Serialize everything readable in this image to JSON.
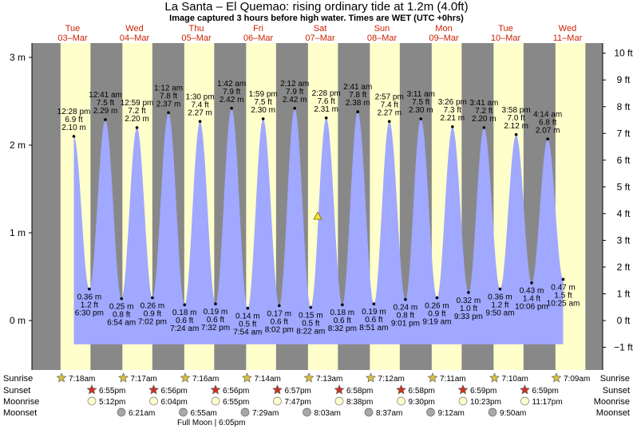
{
  "title": "La Santa – El Quemao: rising  ordinary tide at 1.2m (4.0ft)",
  "subtitle1": "Image captured 3 hours before high water. Times are WET (UTC +0hrs)",
  "subtitle2": "",
  "colors": {
    "night": "#888888",
    "day": "#ffffcc",
    "tide": "#a0a8ff",
    "date_red": "#cc2200",
    "sun_star": "#d8c040",
    "sunset_star": "#cc3322",
    "moonrise": "#ffffcc",
    "moonset": "#a8a8a8"
  },
  "days": [
    {
      "dow": "Tue",
      "date": "03–Mar"
    },
    {
      "dow": "Wed",
      "date": "04–Mar"
    },
    {
      "dow": "Thu",
      "date": "05–Mar"
    },
    {
      "dow": "Fri",
      "date": "06–Mar"
    },
    {
      "dow": "Sat",
      "date": "07–Mar"
    },
    {
      "dow": "Sun",
      "date": "08–Mar"
    },
    {
      "dow": "Mon",
      "date": "09–Mar"
    },
    {
      "dow": "Tue",
      "date": "10–Mar"
    },
    {
      "dow": "Wed",
      "date": "11–Mar"
    }
  ],
  "row_labels": {
    "sunrise": "Sunrise",
    "sunset": "Sunset",
    "moonrise": "Moonrise",
    "moonset": "Moonset"
  },
  "sunrise": [
    "7:18am",
    "7:17am",
    "7:16am",
    "7:14am",
    "7:13am",
    "7:12am",
    "7:11am",
    "7:10am",
    "7:09am"
  ],
  "sunset": [
    "6:55pm",
    "6:56pm",
    "6:56pm",
    "6:57pm",
    "6:58pm",
    "6:58pm",
    "6:59pm",
    "6:59pm"
  ],
  "moonrise": [
    "5:12pm",
    "6:04pm",
    "6:55pm",
    "7:47pm",
    "8:38pm",
    "9:30pm",
    "10:23pm",
    "11:17pm"
  ],
  "moonset": [
    "6:21am",
    "6:55am",
    "7:29am",
    "8:03am",
    "8:37am",
    "9:12am",
    "9:50am"
  ],
  "full_moon": "Full Moon | 6:05pm",
  "chart_data": {
    "type": "area",
    "title": "La Santa – El Quemao: rising  ordinary tide at 1.2m (4.0ft)",
    "ylabel_left": "m",
    "ylabel_right": "ft",
    "ylim_m": [
      -0.3,
      3.1
    ],
    "y_ticks_m": [
      "0 m",
      "1 m",
      "2 m",
      "3 m"
    ],
    "y_ticks_ft": [
      "−1 ft",
      "0 ft",
      "1 ft",
      "2 ft",
      "3 ft",
      "4 ft",
      "5 ft",
      "6 ft",
      "7 ft",
      "8 ft",
      "9 ft",
      "10 ft"
    ],
    "current": {
      "height_m": 1.2,
      "height_ft": 4.0,
      "marker": "triangle"
    },
    "extremes": [
      {
        "kind": "high",
        "time": "12:28 pm",
        "ft": "6.9 ft",
        "m": "2.10 m",
        "d": 0.52,
        "h": 2.1
      },
      {
        "kind": "low",
        "time": "6:30 pm",
        "ft": "1.2 ft",
        "m": "0.36 m",
        "d": 0.77,
        "h": 0.36
      },
      {
        "kind": "high",
        "time": "12:41 am",
        "ft": "7.5 ft",
        "m": "2.29 m",
        "d": 1.03,
        "h": 2.29
      },
      {
        "kind": "low",
        "time": "6:54 am",
        "ft": "0.8 ft",
        "m": "0.25 m",
        "d": 1.29,
        "h": 0.25
      },
      {
        "kind": "high",
        "time": "12:59 pm",
        "ft": "7.2 ft",
        "m": "2.20 m",
        "d": 1.54,
        "h": 2.2
      },
      {
        "kind": "low",
        "time": "7:02 pm",
        "ft": "0.9 ft",
        "m": "0.26 m",
        "d": 1.79,
        "h": 0.26
      },
      {
        "kind": "high",
        "time": "1:12 am",
        "ft": "7.8 ft",
        "m": "2.37 m",
        "d": 2.05,
        "h": 2.37
      },
      {
        "kind": "low",
        "time": "7:24 am",
        "ft": "0.6 ft",
        "m": "0.18 m",
        "d": 2.31,
        "h": 0.18
      },
      {
        "kind": "high",
        "time": "1:30 pm",
        "ft": "7.4 ft",
        "m": "2.27 m",
        "d": 2.56,
        "h": 2.27
      },
      {
        "kind": "low",
        "time": "7:32 pm",
        "ft": "0.6 ft",
        "m": "0.19 m",
        "d": 2.81,
        "h": 0.19
      },
      {
        "kind": "high",
        "time": "1:42 am",
        "ft": "7.9 ft",
        "m": "2.42 m",
        "d": 3.07,
        "h": 2.42
      },
      {
        "kind": "low",
        "time": "7:54 am",
        "ft": "0.5 ft",
        "m": "0.14 m",
        "d": 3.33,
        "h": 0.14
      },
      {
        "kind": "high",
        "time": "1:59 pm",
        "ft": "7.5 ft",
        "m": "2.30 m",
        "d": 3.58,
        "h": 2.3
      },
      {
        "kind": "low",
        "time": "8:02 pm",
        "ft": "0.6 ft",
        "m": "0.17 m",
        "d": 3.84,
        "h": 0.17
      },
      {
        "kind": "high",
        "time": "2:12 am",
        "ft": "7.9 ft",
        "m": "2.42 m",
        "d": 4.09,
        "h": 2.42
      },
      {
        "kind": "low",
        "time": "8:22 am",
        "ft": "0.5 ft",
        "m": "0.15 m",
        "d": 4.35,
        "h": 0.15
      },
      {
        "kind": "high",
        "time": "2:28 pm",
        "ft": "7.6 ft",
        "m": "2.31 m",
        "d": 4.6,
        "h": 2.31
      },
      {
        "kind": "low",
        "time": "8:32 pm",
        "ft": "0.6 ft",
        "m": "0.18 m",
        "d": 4.86,
        "h": 0.18
      },
      {
        "kind": "high",
        "time": "2:41 am",
        "ft": "7.8 ft",
        "m": "2.38 m",
        "d": 5.11,
        "h": 2.38
      },
      {
        "kind": "low",
        "time": "8:51 am",
        "ft": "0.6 ft",
        "m": "0.19 m",
        "d": 5.37,
        "h": 0.19
      },
      {
        "kind": "high",
        "time": "2:57 pm",
        "ft": "7.4 ft",
        "m": "2.27 m",
        "d": 5.62,
        "h": 2.27
      },
      {
        "kind": "low",
        "time": "9:01 pm",
        "ft": "0.8 ft",
        "m": "0.24 m",
        "d": 5.88,
        "h": 0.24
      },
      {
        "kind": "high",
        "time": "3:11 am",
        "ft": "7.5 ft",
        "m": "2.30 m",
        "d": 6.13,
        "h": 2.3
      },
      {
        "kind": "low",
        "time": "9:19 am",
        "ft": "0.9 ft",
        "m": "0.26 m",
        "d": 6.39,
        "h": 0.26
      },
      {
        "kind": "high",
        "time": "3:26 pm",
        "ft": "7.3 ft",
        "m": "2.21 m",
        "d": 6.64,
        "h": 2.21
      },
      {
        "kind": "low",
        "time": "9:33 pm",
        "ft": "1.0 ft",
        "m": "0.32 m",
        "d": 6.9,
        "h": 0.32
      },
      {
        "kind": "high",
        "time": "3:41 am",
        "ft": "7.2 ft",
        "m": "2.20 m",
        "d": 7.15,
        "h": 2.2
      },
      {
        "kind": "low",
        "time": "9:50 am",
        "ft": "1.2 ft",
        "m": "0.36 m",
        "d": 7.41,
        "h": 0.36
      },
      {
        "kind": "high",
        "time": "3:58 pm",
        "ft": "7.0 ft",
        "m": "2.12 m",
        "d": 7.67,
        "h": 2.12
      },
      {
        "kind": "low",
        "time": "10:06 pm",
        "ft": "1.4 ft",
        "m": "0.43 m",
        "d": 7.92,
        "h": 0.43
      },
      {
        "kind": "high",
        "time": "4:14 am",
        "ft": "6.8 ft",
        "m": "2.07 m",
        "d": 8.18,
        "h": 2.07
      },
      {
        "kind": "low",
        "time": "10:25 am",
        "ft": "1.5 ft",
        "m": "0.47 m",
        "d": 8.43,
        "h": 0.47
      }
    ]
  }
}
